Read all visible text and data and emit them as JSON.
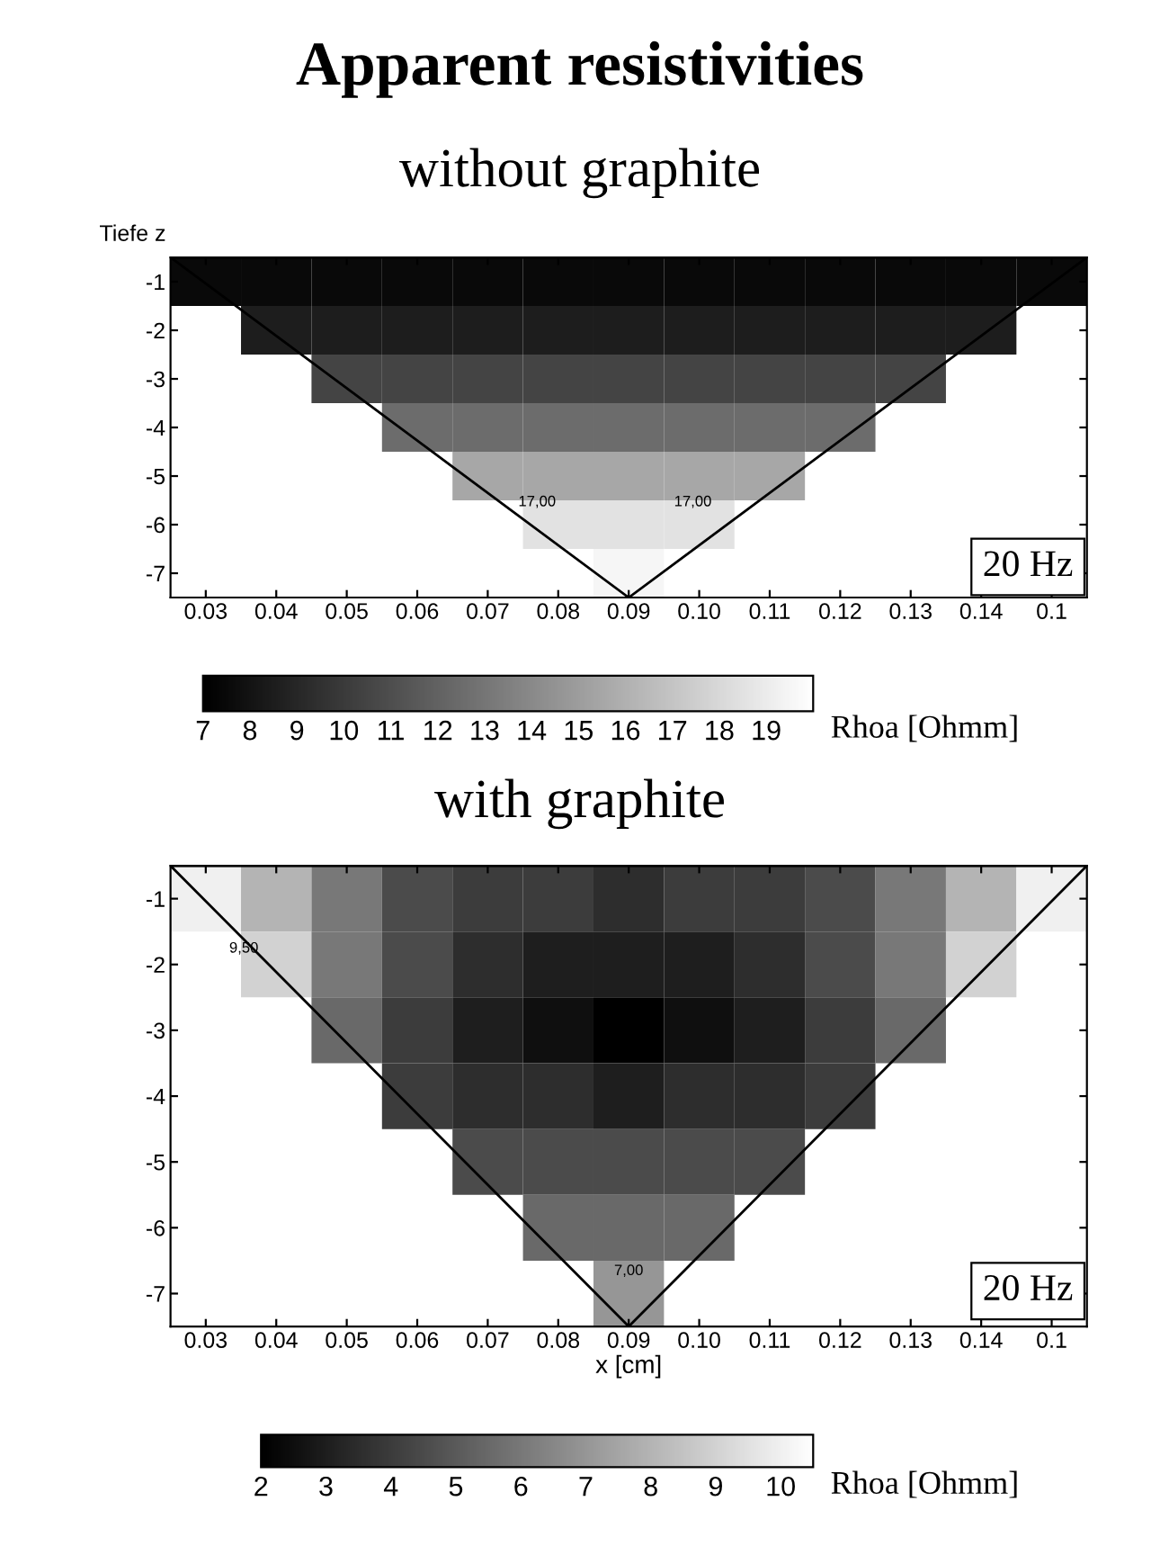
{
  "chart_data": [
    {
      "type": "heatmap",
      "title": "Apparent resistivities",
      "subtitle": "without graphite",
      "ylabel": "Tiefe z",
      "clabel": "Rhoa [Ohmm]",
      "categories": [
        "0.03",
        "0.04",
        "0.05",
        "0.06",
        "0.07",
        "0.08",
        "0.09",
        "0.10",
        "0.11",
        "0.12",
        "0.13",
        "0.14",
        "0.1"
      ],
      "y_categories": [
        "-1",
        "-2",
        "-3",
        "-4",
        "-5",
        "-6",
        "-7"
      ],
      "clim": [
        7,
        20
      ],
      "cticks": [
        7,
        8,
        9,
        10,
        11,
        12,
        13,
        14,
        15,
        16,
        17,
        18,
        19
      ],
      "cells": [
        [
          7.5,
          7.5,
          7.5,
          7.5,
          7.5,
          7.5,
          7.5,
          7.5,
          7.5,
          7.5,
          7.5,
          7.5,
          7.5
        ],
        [
          null,
          8.5,
          8.5,
          8.5,
          8.5,
          8.5,
          8.5,
          8.5,
          8.5,
          8.5,
          8.5,
          8.5,
          null
        ],
        [
          null,
          null,
          10.5,
          10.5,
          10.5,
          10.5,
          10.5,
          10.5,
          10.5,
          10.5,
          10.5,
          null,
          null
        ],
        [
          null,
          null,
          null,
          12.5,
          12.5,
          12.5,
          12.5,
          12.5,
          12.5,
          12.5,
          null,
          null,
          null
        ],
        [
          null,
          null,
          null,
          null,
          15.5,
          15.5,
          15.5,
          15.5,
          15.5,
          null,
          null,
          null,
          null
        ],
        [
          null,
          null,
          null,
          null,
          null,
          18.5,
          18.5,
          18.5,
          null,
          null,
          null,
          null,
          null
        ],
        [
          null,
          null,
          null,
          null,
          null,
          null,
          19.5,
          null,
          null,
          null,
          null,
          null,
          null
        ]
      ],
      "annotations": [
        "20 Hz",
        "17,00",
        "17,00"
      ],
      "grid": false
    },
    {
      "type": "heatmap",
      "title": "with graphite",
      "xlabel": "x [cm]",
      "clabel": "Rhoa [Ohmm]",
      "categories": [
        "0.03",
        "0.04",
        "0.05",
        "0.06",
        "0.07",
        "0.08",
        "0.09",
        "0.10",
        "0.11",
        "0.12",
        "0.13",
        "0.14",
        "0.1"
      ],
      "y_categories": [
        "-1",
        "-2",
        "-3",
        "-4",
        "-5",
        "-6",
        "-7"
      ],
      "clim": [
        2,
        10.5
      ],
      "cticks": [
        2,
        3,
        4,
        5,
        6,
        7,
        8,
        9,
        10
      ],
      "cells": [
        [
          10,
          8,
          6,
          4.5,
          4,
          4,
          3.5,
          4,
          4,
          4.5,
          6,
          8,
          10
        ],
        [
          null,
          9,
          6,
          4.5,
          3.5,
          3,
          3,
          3,
          3.5,
          4.5,
          6,
          9,
          null
        ],
        [
          null,
          null,
          5.5,
          4,
          3,
          2.5,
          2,
          2.5,
          3,
          4,
          5.5,
          null,
          null
        ],
        [
          null,
          null,
          null,
          4,
          3.5,
          3.5,
          3,
          3.5,
          3.5,
          4,
          null,
          null,
          null
        ],
        [
          null,
          null,
          null,
          null,
          4.5,
          4.5,
          4.5,
          4.5,
          4.5,
          null,
          null,
          null,
          null
        ],
        [
          null,
          null,
          null,
          null,
          null,
          5.5,
          5.5,
          5.5,
          null,
          null,
          null,
          null,
          null
        ],
        [
          null,
          null,
          null,
          null,
          null,
          null,
          7,
          null,
          null,
          null,
          null,
          null,
          null
        ]
      ],
      "annotations": [
        "20 Hz",
        "9,50",
        "7,00"
      ],
      "grid": false
    }
  ]
}
